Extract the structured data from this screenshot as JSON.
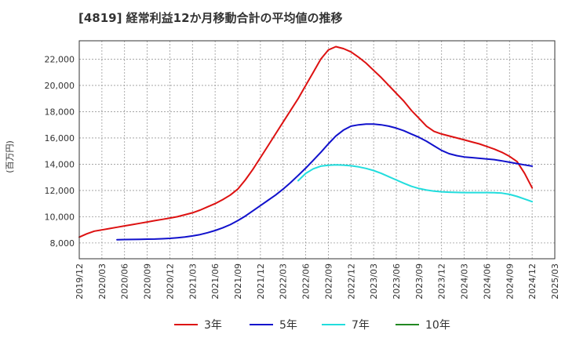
{
  "chart_data": {
    "type": "line",
    "title": "[4819]  経常利益12か月移動合計の平均値の推移",
    "ylabel": "(百万円)",
    "xlabel": "",
    "ylim": [
      6800,
      23400
    ],
    "x_ticks": [
      "2019/12",
      "2020/03",
      "2020/06",
      "2020/09",
      "2020/12",
      "2021/03",
      "2021/06",
      "2021/09",
      "2021/12",
      "2022/03",
      "2022/06",
      "2022/09",
      "2022/12",
      "2023/03",
      "2023/06",
      "2023/09",
      "2023/12",
      "2024/03",
      "2024/06",
      "2024/09",
      "2024/12",
      "2025/03"
    ],
    "y_ticks": [
      8000,
      10000,
      12000,
      14000,
      16000,
      18000,
      20000,
      22000
    ],
    "y_tick_labels": [
      "8,000",
      "10,000",
      "12,000",
      "14,000",
      "16,000",
      "18,000",
      "20,000",
      "22,000"
    ],
    "grid": true,
    "legend_position": "bottom",
    "series": [
      {
        "name": "3年",
        "color": "#dd1111",
        "x": [
          "2019/12",
          "2020/01",
          "2020/02",
          "2020/03",
          "2020/04",
          "2020/05",
          "2020/06",
          "2020/07",
          "2020/08",
          "2020/09",
          "2020/10",
          "2020/11",
          "2020/12",
          "2021/01",
          "2021/02",
          "2021/03",
          "2021/04",
          "2021/05",
          "2021/06",
          "2021/07",
          "2021/08",
          "2021/09",
          "2021/10",
          "2021/11",
          "2021/12",
          "2022/01",
          "2022/02",
          "2022/03",
          "2022/04",
          "2022/05",
          "2022/06",
          "2022/07",
          "2022/08",
          "2022/09",
          "2022/10",
          "2022/11",
          "2022/12",
          "2023/01",
          "2023/02",
          "2023/03",
          "2023/04",
          "2023/05",
          "2023/06",
          "2023/07",
          "2023/08",
          "2023/09",
          "2023/10",
          "2023/11",
          "2023/12",
          "2024/01",
          "2024/02",
          "2024/03",
          "2024/04",
          "2024/05",
          "2024/06",
          "2024/07",
          "2024/08",
          "2024/09",
          "2024/10",
          "2024/11",
          "2024/12"
        ],
        "values": [
          8450,
          8700,
          8900,
          9000,
          9100,
          9200,
          9300,
          9400,
          9500,
          9600,
          9700,
          9800,
          9900,
          10000,
          10150,
          10300,
          10500,
          10750,
          11000,
          11300,
          11650,
          12100,
          12800,
          13600,
          14500,
          15400,
          16300,
          17200,
          18100,
          19000,
          20000,
          21000,
          22000,
          22700,
          22950,
          22800,
          22550,
          22150,
          21700,
          21150,
          20600,
          20000,
          19400,
          18800,
          18100,
          17500,
          16900,
          16500,
          16300,
          16150,
          16000,
          15850,
          15700,
          15550,
          15350,
          15150,
          14900,
          14600,
          14200,
          13300,
          12200
        ]
      },
      {
        "name": "5年",
        "color": "#1111cc",
        "x": [
          "2020/05",
          "2020/06",
          "2020/07",
          "2020/08",
          "2020/09",
          "2020/10",
          "2020/11",
          "2020/12",
          "2021/01",
          "2021/02",
          "2021/03",
          "2021/04",
          "2021/05",
          "2021/06",
          "2021/07",
          "2021/08",
          "2021/09",
          "2021/10",
          "2021/11",
          "2021/12",
          "2022/01",
          "2022/02",
          "2022/03",
          "2022/04",
          "2022/05",
          "2022/06",
          "2022/07",
          "2022/08",
          "2022/09",
          "2022/10",
          "2022/11",
          "2022/12",
          "2023/01",
          "2023/02",
          "2023/03",
          "2023/04",
          "2023/05",
          "2023/06",
          "2023/07",
          "2023/08",
          "2023/09",
          "2023/10",
          "2023/11",
          "2023/12",
          "2024/01",
          "2024/02",
          "2024/03",
          "2024/04",
          "2024/05",
          "2024/06",
          "2024/07",
          "2024/08",
          "2024/09",
          "2024/10",
          "2024/11",
          "2024/12"
        ],
        "values": [
          8250,
          8260,
          8270,
          8280,
          8290,
          8300,
          8320,
          8350,
          8400,
          8460,
          8540,
          8640,
          8780,
          8950,
          9150,
          9400,
          9700,
          10050,
          10450,
          10850,
          11250,
          11650,
          12100,
          12600,
          13150,
          13700,
          14300,
          14900,
          15550,
          16150,
          16600,
          16900,
          17000,
          17050,
          17050,
          17000,
          16900,
          16750,
          16550,
          16300,
          16050,
          15750,
          15400,
          15050,
          14800,
          14650,
          14550,
          14500,
          14450,
          14400,
          14350,
          14250,
          14150,
          14050,
          13950,
          13850
        ]
      },
      {
        "name": "7年",
        "color": "#22dddd",
        "x": [
          "2022/05",
          "2022/06",
          "2022/07",
          "2022/08",
          "2022/09",
          "2022/10",
          "2022/11",
          "2022/12",
          "2023/01",
          "2023/02",
          "2023/03",
          "2023/04",
          "2023/05",
          "2023/06",
          "2023/07",
          "2023/08",
          "2023/09",
          "2023/10",
          "2023/11",
          "2023/12",
          "2024/01",
          "2024/02",
          "2024/03",
          "2024/04",
          "2024/05",
          "2024/06",
          "2024/07",
          "2024/08",
          "2024/09",
          "2024/10",
          "2024/11",
          "2024/12"
        ],
        "values": [
          12750,
          13300,
          13650,
          13850,
          13920,
          13950,
          13930,
          13880,
          13800,
          13680,
          13520,
          13300,
          13050,
          12800,
          12550,
          12320,
          12150,
          12030,
          11950,
          11900,
          11870,
          11850,
          11840,
          11840,
          11840,
          11840,
          11830,
          11800,
          11700,
          11550,
          11350,
          11150
        ]
      },
      {
        "name": "10年",
        "color": "#228822",
        "x": [],
        "values": []
      }
    ]
  }
}
